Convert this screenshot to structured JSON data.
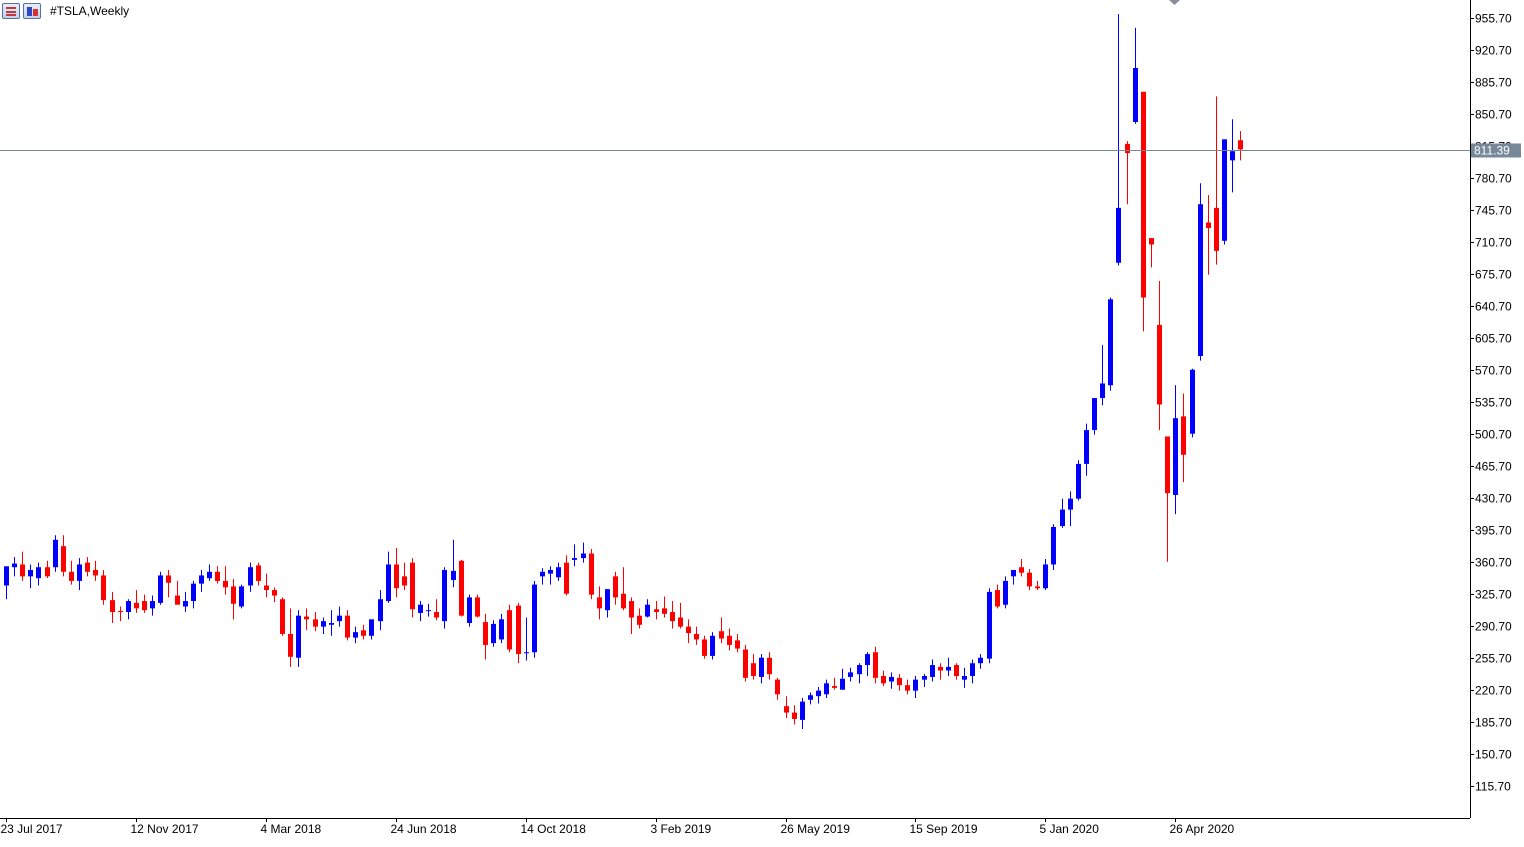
{
  "window": {
    "title": "#TSLA,Weekly",
    "icons": [
      "chart-list-icon",
      "chart-properties-icon"
    ]
  },
  "colors": {
    "bull": "#0000ff",
    "bear": "#ff0000",
    "grid": "#ffffff",
    "axis": "#000000",
    "price_line": "#778899",
    "price_label_bg": "#778899",
    "price_label_text": "#ffffff"
  },
  "current_price_label": "811.39",
  "chart_data": {
    "type": "candlestick",
    "symbol": "#TSLA",
    "timeframe": "Weekly",
    "title": "#TSLA,Weekly",
    "xlabel": "",
    "ylabel": "",
    "ylim": [
      80,
      970
    ],
    "grid": false,
    "current_price": 811.39,
    "y_ticks": [
      "955.70",
      "920.70",
      "885.70",
      "850.70",
      "815.70",
      "780.70",
      "745.70",
      "710.70",
      "675.70",
      "640.70",
      "605.70",
      "570.70",
      "535.70",
      "500.70",
      "465.70",
      "430.70",
      "395.70",
      "360.70",
      "325.70",
      "290.70",
      "255.70",
      "220.70",
      "185.70",
      "150.70",
      "115.70"
    ],
    "x_tick_labels": [
      {
        "label": "23 Jul 2017",
        "bar": 0
      },
      {
        "label": "12 Nov 2017",
        "bar": 16
      },
      {
        "label": "4 Mar 2018",
        "bar": 32
      },
      {
        "label": "24 Jun 2018",
        "bar": 48
      },
      {
        "label": "14 Oct 2018",
        "bar": 64
      },
      {
        "label": "3 Feb 2019",
        "bar": 80
      },
      {
        "label": "26 May 2019",
        "bar": 96
      },
      {
        "label": "15 Sep 2019",
        "bar": 112
      },
      {
        "label": "5 Jan 2020",
        "bar": 128
      },
      {
        "label": "26 Apr 2020",
        "bar": 144
      }
    ],
    "candles": [
      {
        "o": 335,
        "h": 350,
        "l": 320,
        "c": 356
      },
      {
        "o": 355,
        "h": 366,
        "l": 345,
        "c": 359
      },
      {
        "o": 358,
        "h": 372,
        "l": 340,
        "c": 345
      },
      {
        "o": 345,
        "h": 358,
        "l": 332,
        "c": 352
      },
      {
        "o": 343,
        "h": 360,
        "l": 335,
        "c": 355
      },
      {
        "o": 355,
        "h": 362,
        "l": 343,
        "c": 345
      },
      {
        "o": 355,
        "h": 390,
        "l": 350,
        "c": 385
      },
      {
        "o": 378,
        "h": 390,
        "l": 345,
        "c": 350
      },
      {
        "o": 350,
        "h": 362,
        "l": 336,
        "c": 340
      },
      {
        "o": 340,
        "h": 365,
        "l": 330,
        "c": 358
      },
      {
        "o": 360,
        "h": 366,
        "l": 345,
        "c": 350
      },
      {
        "o": 352,
        "h": 362,
        "l": 340,
        "c": 346
      },
      {
        "o": 346,
        "h": 352,
        "l": 314,
        "c": 319
      },
      {
        "o": 319,
        "h": 328,
        "l": 294,
        "c": 306
      },
      {
        "o": 307,
        "h": 312,
        "l": 296,
        "c": 306
      },
      {
        "o": 306,
        "h": 320,
        "l": 298,
        "c": 318
      },
      {
        "o": 316,
        "h": 330,
        "l": 305,
        "c": 310
      },
      {
        "o": 318,
        "h": 325,
        "l": 305,
        "c": 308
      },
      {
        "o": 310,
        "h": 324,
        "l": 302,
        "c": 318
      },
      {
        "o": 316,
        "h": 350,
        "l": 314,
        "c": 346
      },
      {
        "o": 346,
        "h": 352,
        "l": 322,
        "c": 338
      },
      {
        "o": 324,
        "h": 340,
        "l": 315,
        "c": 314
      },
      {
        "o": 312,
        "h": 328,
        "l": 306,
        "c": 318
      },
      {
        "o": 318,
        "h": 340,
        "l": 310,
        "c": 337
      },
      {
        "o": 337,
        "h": 352,
        "l": 328,
        "c": 346
      },
      {
        "o": 343,
        "h": 358,
        "l": 340,
        "c": 350
      },
      {
        "o": 350,
        "h": 356,
        "l": 337,
        "c": 340
      },
      {
        "o": 340,
        "h": 356,
        "l": 325,
        "c": 333
      },
      {
        "o": 334,
        "h": 342,
        "l": 298,
        "c": 315
      },
      {
        "o": 312,
        "h": 336,
        "l": 310,
        "c": 334
      },
      {
        "o": 335,
        "h": 360,
        "l": 328,
        "c": 355
      },
      {
        "o": 357,
        "h": 360,
        "l": 335,
        "c": 340
      },
      {
        "o": 335,
        "h": 348,
        "l": 322,
        "c": 330
      },
      {
        "o": 330,
        "h": 333,
        "l": 317,
        "c": 324
      },
      {
        "o": 320,
        "h": 322,
        "l": 280,
        "c": 282
      },
      {
        "o": 282,
        "h": 310,
        "l": 246,
        "c": 257
      },
      {
        "o": 256,
        "h": 308,
        "l": 246,
        "c": 302
      },
      {
        "o": 301,
        "h": 310,
        "l": 286,
        "c": 298
      },
      {
        "o": 298,
        "h": 306,
        "l": 285,
        "c": 290
      },
      {
        "o": 290,
        "h": 300,
        "l": 282,
        "c": 296
      },
      {
        "o": 292,
        "h": 308,
        "l": 280,
        "c": 294
      },
      {
        "o": 296,
        "h": 312,
        "l": 290,
        "c": 302
      },
      {
        "o": 302,
        "h": 308,
        "l": 275,
        "c": 278
      },
      {
        "o": 278,
        "h": 290,
        "l": 272,
        "c": 284
      },
      {
        "o": 286,
        "h": 292,
        "l": 276,
        "c": 280
      },
      {
        "o": 280,
        "h": 298,
        "l": 276,
        "c": 298
      },
      {
        "o": 296,
        "h": 330,
        "l": 286,
        "c": 320
      },
      {
        "o": 318,
        "h": 372,
        "l": 316,
        "c": 358
      },
      {
        "o": 358,
        "h": 376,
        "l": 322,
        "c": 332
      },
      {
        "o": 345,
        "h": 360,
        "l": 330,
        "c": 335
      },
      {
        "o": 360,
        "h": 365,
        "l": 300,
        "c": 309
      },
      {
        "o": 305,
        "h": 318,
        "l": 296,
        "c": 314
      },
      {
        "o": 308,
        "h": 315,
        "l": 301,
        "c": 308
      },
      {
        "o": 306,
        "h": 320,
        "l": 297,
        "c": 300
      },
      {
        "o": 296,
        "h": 355,
        "l": 288,
        "c": 352
      },
      {
        "o": 341,
        "h": 385,
        "l": 333,
        "c": 351
      },
      {
        "o": 362,
        "h": 363,
        "l": 301,
        "c": 302
      },
      {
        "o": 294,
        "h": 325,
        "l": 290,
        "c": 322
      },
      {
        "o": 322,
        "h": 325,
        "l": 300,
        "c": 301
      },
      {
        "o": 295,
        "h": 304,
        "l": 254,
        "c": 270
      },
      {
        "o": 272,
        "h": 297,
        "l": 268,
        "c": 293
      },
      {
        "o": 276,
        "h": 304,
        "l": 272,
        "c": 298
      },
      {
        "o": 308,
        "h": 314,
        "l": 262,
        "c": 265
      },
      {
        "o": 313,
        "h": 316,
        "l": 250,
        "c": 260
      },
      {
        "o": 262,
        "h": 300,
        "l": 253,
        "c": 262
      },
      {
        "o": 262,
        "h": 340,
        "l": 256,
        "c": 336
      },
      {
        "o": 345,
        "h": 354,
        "l": 336,
        "c": 350
      },
      {
        "o": 348,
        "h": 356,
        "l": 336,
        "c": 352
      },
      {
        "o": 344,
        "h": 360,
        "l": 340,
        "c": 355
      },
      {
        "o": 360,
        "h": 368,
        "l": 324,
        "c": 326
      },
      {
        "o": 363,
        "h": 380,
        "l": 356,
        "c": 365
      },
      {
        "o": 365,
        "h": 382,
        "l": 360,
        "c": 370
      },
      {
        "o": 370,
        "h": 375,
        "l": 320,
        "c": 325
      },
      {
        "o": 322,
        "h": 334,
        "l": 298,
        "c": 310
      },
      {
        "o": 308,
        "h": 330,
        "l": 300,
        "c": 331
      },
      {
        "o": 345,
        "h": 350,
        "l": 314,
        "c": 322
      },
      {
        "o": 326,
        "h": 355,
        "l": 308,
        "c": 310
      },
      {
        "o": 318,
        "h": 322,
        "l": 282,
        "c": 300
      },
      {
        "o": 302,
        "h": 310,
        "l": 288,
        "c": 292
      },
      {
        "o": 301,
        "h": 320,
        "l": 300,
        "c": 314
      },
      {
        "o": 309,
        "h": 318,
        "l": 298,
        "c": 306
      },
      {
        "o": 310,
        "h": 323,
        "l": 300,
        "c": 304
      },
      {
        "o": 306,
        "h": 318,
        "l": 288,
        "c": 296
      },
      {
        "o": 300,
        "h": 316,
        "l": 288,
        "c": 290
      },
      {
        "o": 290,
        "h": 298,
        "l": 272,
        "c": 283
      },
      {
        "o": 282,
        "h": 290,
        "l": 270,
        "c": 276
      },
      {
        "o": 276,
        "h": 280,
        "l": 255,
        "c": 258
      },
      {
        "o": 258,
        "h": 284,
        "l": 254,
        "c": 280
      },
      {
        "o": 285,
        "h": 300,
        "l": 272,
        "c": 277
      },
      {
        "o": 280,
        "h": 288,
        "l": 264,
        "c": 270
      },
      {
        "o": 275,
        "h": 282,
        "l": 262,
        "c": 266
      },
      {
        "o": 265,
        "h": 270,
        "l": 230,
        "c": 234
      },
      {
        "o": 250,
        "h": 260,
        "l": 232,
        "c": 236
      },
      {
        "o": 235,
        "h": 260,
        "l": 228,
        "c": 256
      },
      {
        "o": 256,
        "h": 262,
        "l": 232,
        "c": 238
      },
      {
        "o": 232,
        "h": 234,
        "l": 210,
        "c": 216
      },
      {
        "o": 203,
        "h": 214,
        "l": 190,
        "c": 196
      },
      {
        "o": 196,
        "h": 204,
        "l": 183,
        "c": 189
      },
      {
        "o": 188,
        "h": 212,
        "l": 178,
        "c": 208
      },
      {
        "o": 210,
        "h": 218,
        "l": 205,
        "c": 215
      },
      {
        "o": 214,
        "h": 224,
        "l": 206,
        "c": 220
      },
      {
        "o": 216,
        "h": 232,
        "l": 212,
        "c": 228
      },
      {
        "o": 225,
        "h": 234,
        "l": 221,
        "c": 223
      },
      {
        "o": 221,
        "h": 244,
        "l": 222,
        "c": 233
      },
      {
        "o": 235,
        "h": 245,
        "l": 230,
        "c": 240
      },
      {
        "o": 238,
        "h": 250,
        "l": 228,
        "c": 248
      },
      {
        "o": 248,
        "h": 262,
        "l": 236,
        "c": 260
      },
      {
        "o": 262,
        "h": 268,
        "l": 228,
        "c": 234
      },
      {
        "o": 236,
        "h": 242,
        "l": 225,
        "c": 228
      },
      {
        "o": 230,
        "h": 240,
        "l": 222,
        "c": 235
      },
      {
        "o": 234,
        "h": 238,
        "l": 220,
        "c": 226
      },
      {
        "o": 226,
        "h": 232,
        "l": 216,
        "c": 220
      },
      {
        "o": 220,
        "h": 236,
        "l": 212,
        "c": 232
      },
      {
        "o": 232,
        "h": 238,
        "l": 224,
        "c": 236
      },
      {
        "o": 235,
        "h": 254,
        "l": 230,
        "c": 248
      },
      {
        "o": 246,
        "h": 250,
        "l": 232,
        "c": 242
      },
      {
        "o": 242,
        "h": 256,
        "l": 236,
        "c": 246
      },
      {
        "o": 248,
        "h": 250,
        "l": 232,
        "c": 236
      },
      {
        "o": 232,
        "h": 245,
        "l": 223,
        "c": 236
      },
      {
        "o": 236,
        "h": 254,
        "l": 228,
        "c": 250
      },
      {
        "o": 250,
        "h": 260,
        "l": 244,
        "c": 256
      },
      {
        "o": 255,
        "h": 332,
        "l": 250,
        "c": 328
      },
      {
        "o": 330,
        "h": 336,
        "l": 310,
        "c": 312
      },
      {
        "o": 314,
        "h": 345,
        "l": 310,
        "c": 340
      },
      {
        "o": 345,
        "h": 352,
        "l": 336,
        "c": 352
      },
      {
        "o": 355,
        "h": 364,
        "l": 345,
        "c": 349
      },
      {
        "o": 349,
        "h": 353,
        "l": 330,
        "c": 334
      },
      {
        "o": 334,
        "h": 340,
        "l": 330,
        "c": 332
      },
      {
        "o": 332,
        "h": 364,
        "l": 330,
        "c": 358
      },
      {
        "o": 358,
        "h": 402,
        "l": 352,
        "c": 399
      },
      {
        "o": 400,
        "h": 430,
        "l": 398,
        "c": 418
      },
      {
        "o": 418,
        "h": 438,
        "l": 400,
        "c": 430
      },
      {
        "o": 430,
        "h": 472,
        "l": 428,
        "c": 468
      },
      {
        "o": 468,
        "h": 512,
        "l": 455,
        "c": 505
      },
      {
        "o": 505,
        "h": 540,
        "l": 500,
        "c": 540
      },
      {
        "o": 540,
        "h": 598,
        "l": 532,
        "c": 556
      },
      {
        "o": 554,
        "h": 650,
        "l": 548,
        "c": 648
      },
      {
        "o": 688,
        "h": 960,
        "l": 685,
        "c": 748
      },
      {
        "o": 818,
        "h": 821,
        "l": 752,
        "c": 808
      },
      {
        "o": 842,
        "h": 945,
        "l": 840,
        "c": 901
      },
      {
        "o": 875,
        "h": 868,
        "l": 613,
        "c": 650
      },
      {
        "o": 715,
        "h": 712,
        "l": 683,
        "c": 708
      },
      {
        "o": 620,
        "h": 668,
        "l": 505,
        "c": 533
      },
      {
        "o": 498,
        "h": 498,
        "l": 361,
        "c": 436
      },
      {
        "o": 434,
        "h": 554,
        "l": 413,
        "c": 518
      },
      {
        "o": 520,
        "h": 545,
        "l": 448,
        "c": 478
      },
      {
        "o": 501,
        "h": 572,
        "l": 497,
        "c": 571
      },
      {
        "o": 586,
        "h": 775,
        "l": 581,
        "c": 752
      },
      {
        "o": 732,
        "h": 762,
        "l": 675,
        "c": 726
      },
      {
        "o": 748,
        "h": 870,
        "l": 686,
        "c": 701
      },
      {
        "o": 712,
        "h": 822,
        "l": 708,
        "c": 823
      },
      {
        "o": 800,
        "h": 845,
        "l": 765,
        "c": 810
      },
      {
        "o": 822,
        "h": 832,
        "l": 800,
        "c": 812
      }
    ]
  }
}
